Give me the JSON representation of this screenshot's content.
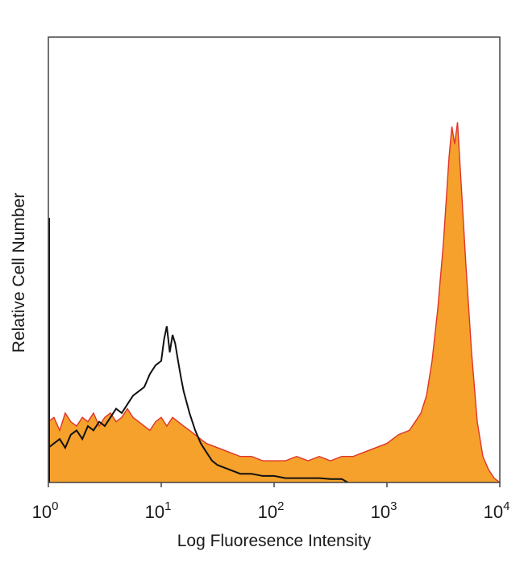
{
  "chart_data": {
    "type": "area",
    "title": "",
    "xlabel": "Log Fluoresence Intensity",
    "ylabel": "Relative Cell Number",
    "x_scale": "log",
    "xlim": [
      1,
      10000
    ],
    "ylim": [
      0,
      1
    ],
    "grid": false,
    "legend": "none",
    "x_ticks": [
      {
        "base": "10",
        "exp": "0",
        "value": 1
      },
      {
        "base": "10",
        "exp": "1",
        "value": 10
      },
      {
        "base": "10",
        "exp": "2",
        "value": 100
      },
      {
        "base": "10",
        "exp": "3",
        "value": 1000
      },
      {
        "base": "10",
        "exp": "4",
        "value": 10000
      }
    ],
    "series": [
      {
        "style": "filled",
        "fill_color": "#f5a12b",
        "line_color": "#e0342a",
        "x": [
          1,
          1.12,
          1.26,
          1.41,
          1.58,
          1.78,
          2.0,
          2.24,
          2.51,
          2.82,
          3.16,
          3.55,
          3.98,
          4.47,
          5.01,
          5.62,
          6.31,
          7.08,
          7.94,
          8.91,
          10.0,
          11.2,
          12.6,
          14.1,
          15.8,
          17.8,
          20.0,
          25.1,
          31.6,
          39.8,
          50.1,
          63.1,
          79.4,
          100,
          126,
          158,
          200,
          251,
          316,
          398,
          501,
          631,
          794,
          1000,
          1260,
          1580,
          1780,
          2000,
          2240,
          2510,
          2820,
          3160,
          3550,
          3760,
          3980,
          4220,
          4470,
          5010,
          5620,
          6310,
          7080,
          7940,
          8910,
          10000
        ],
        "y": [
          0.14,
          0.15,
          0.12,
          0.16,
          0.14,
          0.13,
          0.15,
          0.14,
          0.16,
          0.13,
          0.15,
          0.16,
          0.14,
          0.15,
          0.17,
          0.15,
          0.14,
          0.13,
          0.12,
          0.14,
          0.15,
          0.13,
          0.15,
          0.14,
          0.13,
          0.12,
          0.11,
          0.09,
          0.08,
          0.07,
          0.06,
          0.06,
          0.05,
          0.05,
          0.05,
          0.06,
          0.05,
          0.06,
          0.05,
          0.06,
          0.06,
          0.07,
          0.08,
          0.09,
          0.11,
          0.12,
          0.14,
          0.16,
          0.2,
          0.28,
          0.4,
          0.55,
          0.75,
          0.82,
          0.78,
          0.83,
          0.72,
          0.5,
          0.3,
          0.14,
          0.06,
          0.03,
          0.01,
          0.0
        ]
      },
      {
        "style": "line",
        "line_color": "#111111",
        "x": [
          1,
          1.12,
          1.26,
          1.41,
          1.58,
          1.78,
          2.0,
          2.24,
          2.51,
          2.82,
          3.16,
          3.55,
          3.98,
          4.47,
          5.01,
          5.62,
          6.31,
          7.08,
          7.94,
          8.91,
          10.0,
          10.6,
          11.2,
          11.9,
          12.6,
          13.3,
          14.1,
          15.0,
          15.8,
          17.8,
          20.0,
          22.4,
          25.1,
          28.2,
          31.6,
          39.8,
          50.1,
          63.1,
          79.4,
          100,
          126,
          158,
          200,
          251,
          316,
          398,
          450
        ],
        "y": [
          0.08,
          0.09,
          0.1,
          0.08,
          0.11,
          0.12,
          0.1,
          0.13,
          0.12,
          0.14,
          0.13,
          0.15,
          0.17,
          0.16,
          0.18,
          0.2,
          0.21,
          0.22,
          0.25,
          0.27,
          0.28,
          0.33,
          0.36,
          0.3,
          0.34,
          0.32,
          0.28,
          0.24,
          0.21,
          0.16,
          0.12,
          0.09,
          0.07,
          0.05,
          0.04,
          0.03,
          0.02,
          0.02,
          0.015,
          0.015,
          0.01,
          0.01,
          0.01,
          0.01,
          0.008,
          0.008,
          0.0
        ]
      }
    ]
  }
}
